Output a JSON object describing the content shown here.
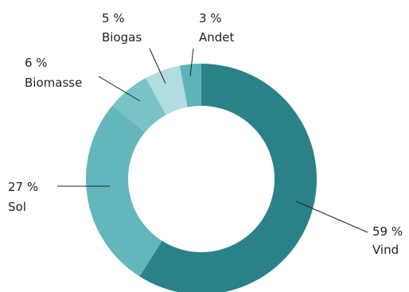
{
  "chart_data": {
    "type": "pie",
    "title": "",
    "donut": true,
    "start": "top, clockwise",
    "slices": [
      {
        "name": "Vind",
        "value": 59,
        "value_label": "59 %",
        "color": "#2a8288"
      },
      {
        "name": "Sol",
        "value": 27,
        "value_label": "27 %",
        "color": "#63b6bb"
      },
      {
        "name": "Biomasse",
        "value": 6,
        "value_label": "6 %",
        "color": "#79c3c6"
      },
      {
        "name": "Biogas",
        "value": 5,
        "value_label": "5 %",
        "color": "#b1dde0"
      },
      {
        "name": "Andet",
        "value": 3,
        "value_label": "3 %",
        "color": "#5eb3b8"
      }
    ]
  }
}
